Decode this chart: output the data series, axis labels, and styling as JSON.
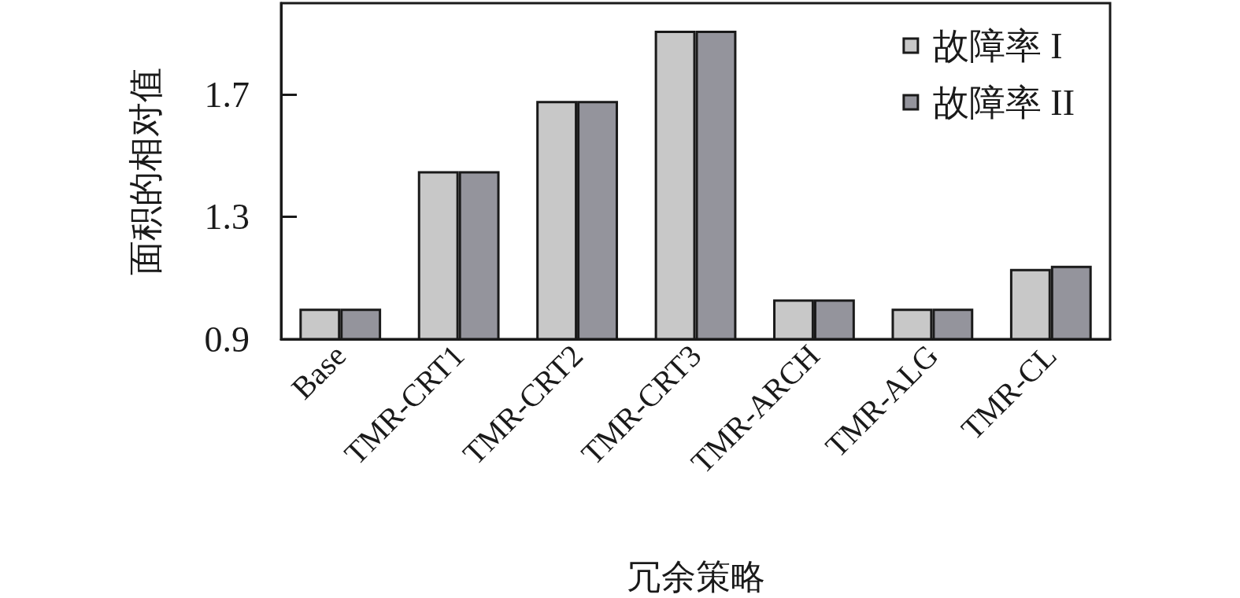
{
  "chart_data": {
    "type": "bar",
    "xlabel": "冗余策略",
    "ylabel": "面积的相对值",
    "categories": [
      "Base",
      "TMR-CRT1",
      "TMR-CRT2",
      "TMR-CRT3",
      "TMR-ARCH",
      "TMR-ALG",
      "TMR-CL"
    ],
    "series": [
      {
        "name": "故障率 I",
        "color": "#c8c8c8",
        "values": [
          1.0,
          1.45,
          1.68,
          1.91,
          1.03,
          1.0,
          1.13
        ]
      },
      {
        "name": "故障率 II",
        "color": "#94949c",
        "values": [
          1.0,
          1.45,
          1.68,
          1.91,
          1.03,
          1.0,
          1.14
        ]
      }
    ],
    "ylim": [
      0.9,
      2.0
    ],
    "yticks": [
      0.9,
      1.3,
      1.7
    ],
    "grid": false,
    "legend": "top right"
  }
}
